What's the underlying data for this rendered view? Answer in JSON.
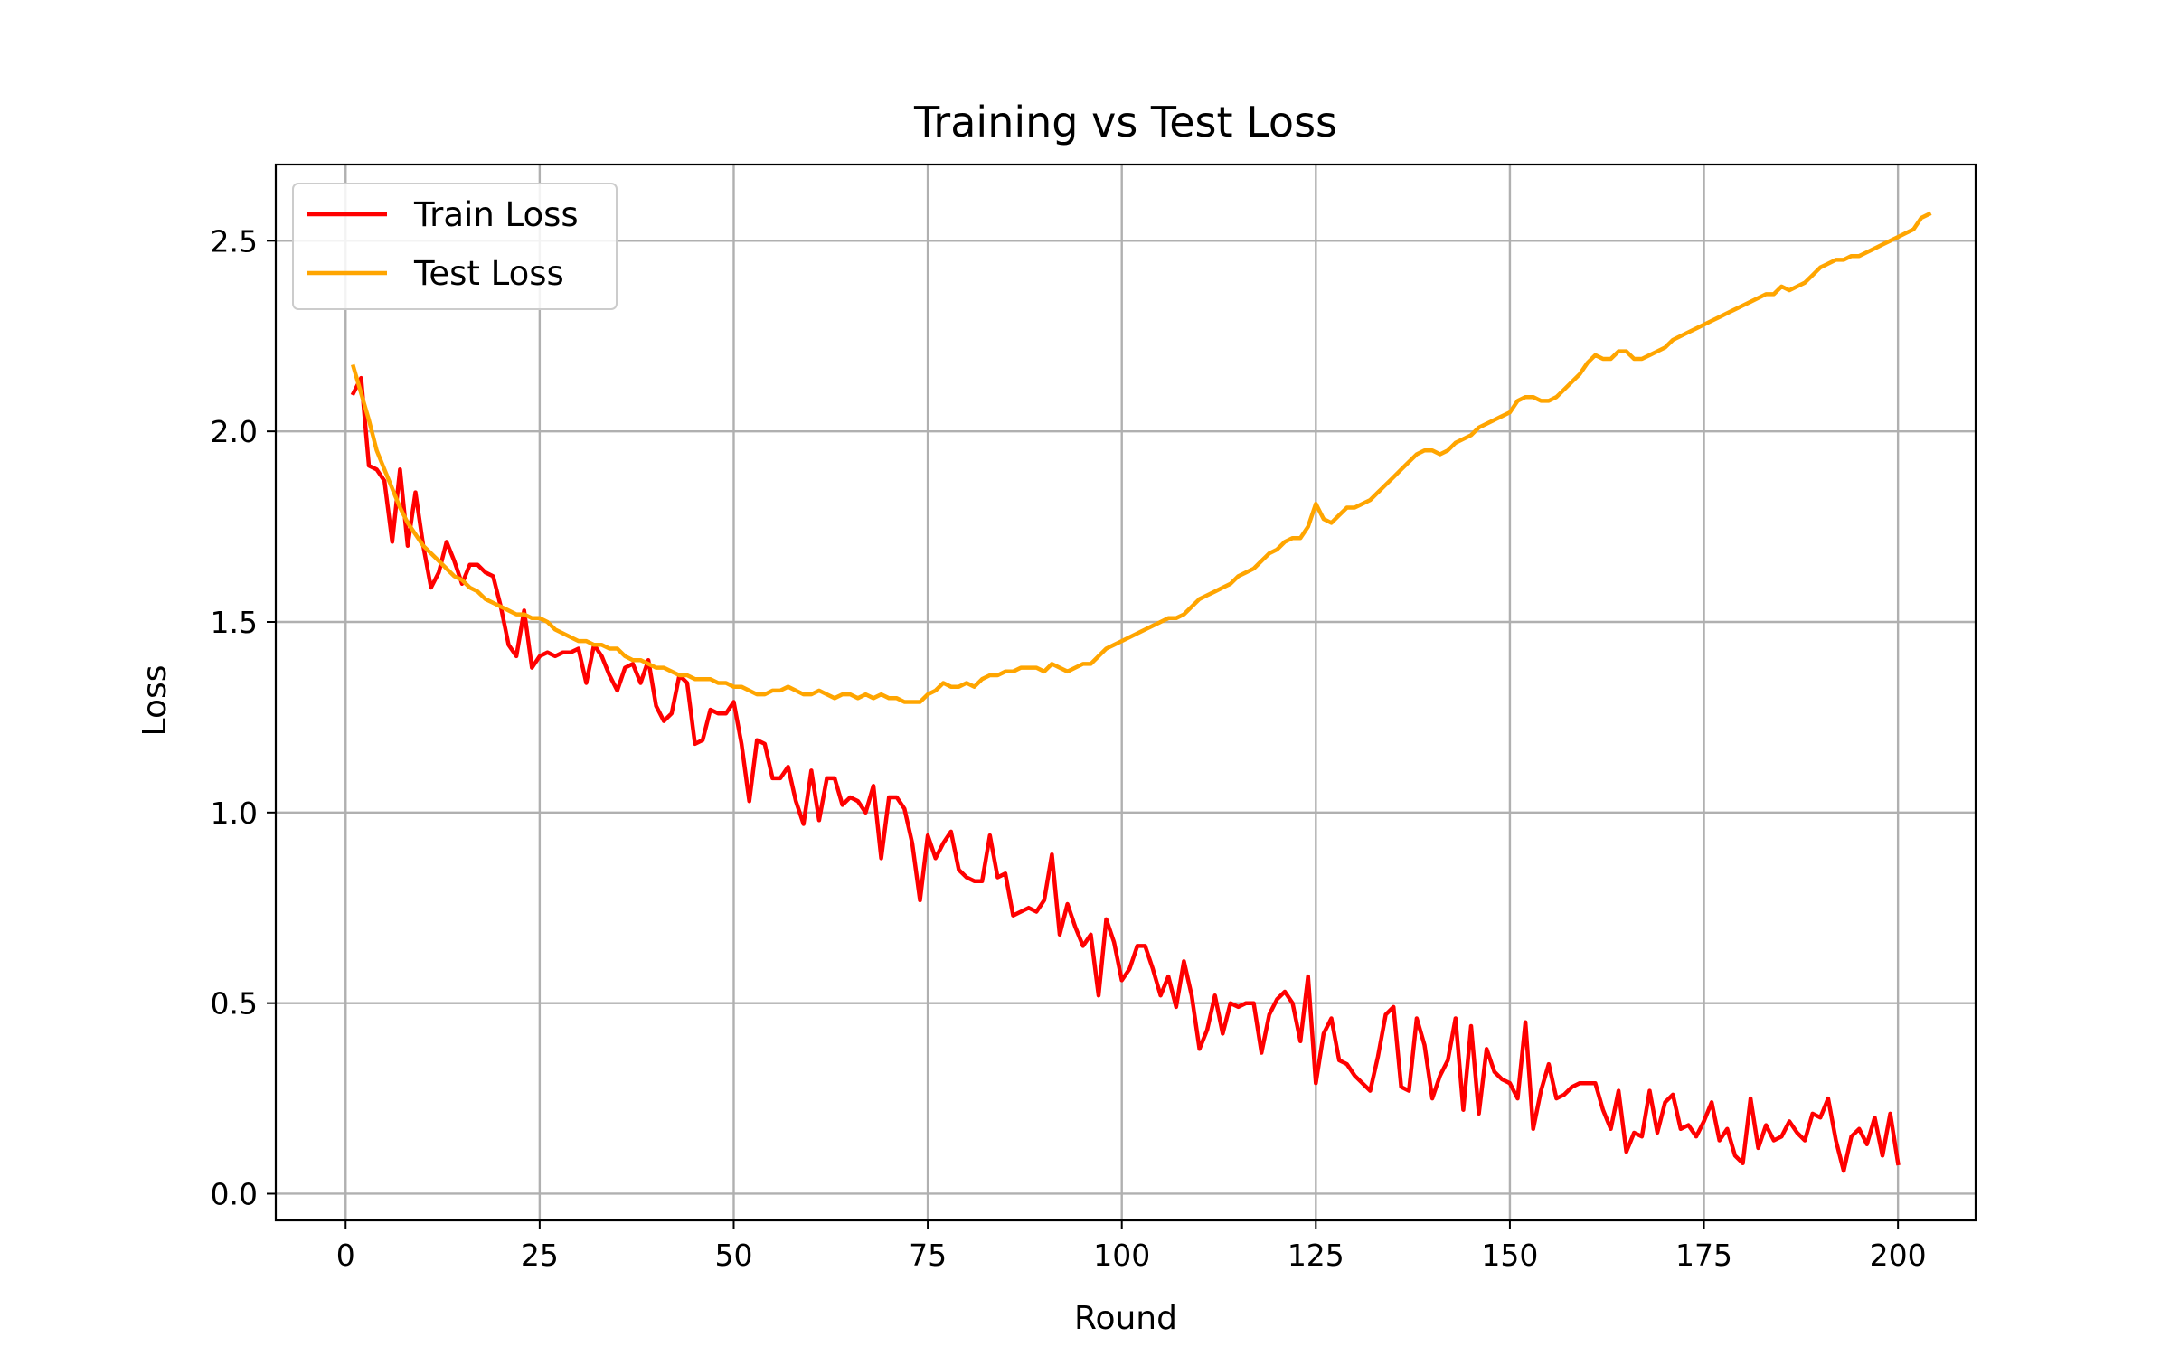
{
  "chart_data": {
    "type": "line",
    "title": "Training vs Test Loss",
    "xlabel": "Round",
    "ylabel": "Loss",
    "xlim": [
      -9,
      210
    ],
    "ylim": [
      -0.07,
      2.7
    ],
    "xticks": [
      0,
      25,
      50,
      75,
      100,
      125,
      150,
      175,
      200
    ],
    "yticks": [
      0.0,
      0.5,
      1.0,
      1.5,
      2.0,
      2.5
    ],
    "xtick_labels": [
      "0",
      "25",
      "50",
      "75",
      "100",
      "125",
      "150",
      "175",
      "200"
    ],
    "ytick_labels": [
      "0.0",
      "0.5",
      "1.0",
      "1.5",
      "2.0",
      "2.5"
    ],
    "grid": true,
    "legend_position": "top-left",
    "series": [
      {
        "name": "Train Loss",
        "color": "#ff0000",
        "x_start": 1,
        "x_step": 1,
        "values": [
          2.1,
          2.14,
          1.91,
          1.9,
          1.87,
          1.71,
          1.9,
          1.7,
          1.84,
          1.7,
          1.59,
          1.63,
          1.71,
          1.66,
          1.6,
          1.65,
          1.65,
          1.63,
          1.62,
          1.54,
          1.44,
          1.41,
          1.53,
          1.38,
          1.41,
          1.42,
          1.41,
          1.42,
          1.42,
          1.43,
          1.34,
          1.44,
          1.41,
          1.36,
          1.32,
          1.38,
          1.39,
          1.34,
          1.4,
          1.28,
          1.24,
          1.26,
          1.36,
          1.34,
          1.18,
          1.19,
          1.27,
          1.26,
          1.26,
          1.29,
          1.18,
          1.03,
          1.19,
          1.18,
          1.09,
          1.09,
          1.12,
          1.03,
          0.97,
          1.11,
          0.98,
          1.09,
          1.09,
          1.02,
          1.04,
          1.03,
          1.0,
          1.07,
          0.88,
          1.04,
          1.04,
          1.01,
          0.92,
          0.77,
          0.94,
          0.88,
          0.92,
          0.95,
          0.85,
          0.83,
          0.82,
          0.82,
          0.94,
          0.83,
          0.84,
          0.73,
          0.74,
          0.75,
          0.74,
          0.77,
          0.89,
          0.68,
          0.76,
          0.7,
          0.65,
          0.68,
          0.52,
          0.72,
          0.66,
          0.56,
          0.59,
          0.65,
          0.65,
          0.59,
          0.52,
          0.57,
          0.49,
          0.61,
          0.52,
          0.38,
          0.43,
          0.52,
          0.42,
          0.5,
          0.49,
          0.5,
          0.5,
          0.37,
          0.47,
          0.51,
          0.53,
          0.5,
          0.4,
          0.57,
          0.29,
          0.42,
          0.46,
          0.35,
          0.34,
          0.31,
          0.29,
          0.27,
          0.36,
          0.47,
          0.49,
          0.28,
          0.27,
          0.46,
          0.39,
          0.25,
          0.31,
          0.35,
          0.46,
          0.22,
          0.44,
          0.21,
          0.38,
          0.32,
          0.3,
          0.29,
          0.25,
          0.45,
          0.17,
          0.27,
          0.34,
          0.25,
          0.26,
          0.28,
          0.29,
          0.29,
          0.29,
          0.22,
          0.17,
          0.27,
          0.11,
          0.16,
          0.15,
          0.27,
          0.16,
          0.24,
          0.26,
          0.17,
          0.18,
          0.15,
          0.19,
          0.24,
          0.14,
          0.17,
          0.1,
          0.08,
          0.25,
          0.12,
          0.18,
          0.14,
          0.15,
          0.19,
          0.16,
          0.14,
          0.21,
          0.2,
          0.25,
          0.14,
          0.06,
          0.15,
          0.17,
          0.13,
          0.2,
          0.1,
          0.21,
          0.08
        ]
      },
      {
        "name": "Test Loss",
        "color": "#ffa500",
        "x_start": 1,
        "x_step": 1,
        "values": [
          2.17,
          2.1,
          2.03,
          1.95,
          1.9,
          1.85,
          1.8,
          1.76,
          1.73,
          1.7,
          1.68,
          1.66,
          1.64,
          1.62,
          1.61,
          1.59,
          1.58,
          1.56,
          1.55,
          1.54,
          1.53,
          1.52,
          1.52,
          1.51,
          1.51,
          1.5,
          1.48,
          1.47,
          1.46,
          1.45,
          1.45,
          1.44,
          1.44,
          1.43,
          1.43,
          1.41,
          1.4,
          1.4,
          1.39,
          1.38,
          1.38,
          1.37,
          1.36,
          1.36,
          1.35,
          1.35,
          1.35,
          1.34,
          1.34,
          1.33,
          1.33,
          1.32,
          1.31,
          1.31,
          1.32,
          1.32,
          1.33,
          1.32,
          1.31,
          1.31,
          1.32,
          1.31,
          1.3,
          1.31,
          1.31,
          1.3,
          1.31,
          1.3,
          1.31,
          1.3,
          1.3,
          1.29,
          1.29,
          1.29,
          1.31,
          1.32,
          1.34,
          1.33,
          1.33,
          1.34,
          1.33,
          1.35,
          1.36,
          1.36,
          1.37,
          1.37,
          1.38,
          1.38,
          1.38,
          1.37,
          1.39,
          1.38,
          1.37,
          1.38,
          1.39,
          1.39,
          1.41,
          1.43,
          1.44,
          1.45,
          1.46,
          1.47,
          1.48,
          1.49,
          1.5,
          1.51,
          1.51,
          1.52,
          1.54,
          1.56,
          1.57,
          1.58,
          1.59,
          1.6,
          1.62,
          1.63,
          1.64,
          1.66,
          1.68,
          1.69,
          1.71,
          1.72,
          1.72,
          1.75,
          1.81,
          1.77,
          1.76,
          1.78,
          1.8,
          1.8,
          1.81,
          1.82,
          1.84,
          1.86,
          1.88,
          1.9,
          1.92,
          1.94,
          1.95,
          1.95,
          1.94,
          1.95,
          1.97,
          1.98,
          1.99,
          2.01,
          2.02,
          2.03,
          2.04,
          2.05,
          2.08,
          2.09,
          2.09,
          2.08,
          2.08,
          2.09,
          2.11,
          2.13,
          2.15,
          2.18,
          2.2,
          2.19,
          2.19,
          2.21,
          2.21,
          2.19,
          2.19,
          2.2,
          2.21,
          2.22,
          2.24,
          2.25,
          2.26,
          2.27,
          2.28,
          2.29,
          2.3,
          2.31,
          2.32,
          2.33,
          2.34,
          2.35,
          2.36,
          2.36,
          2.38,
          2.37,
          2.38,
          2.39,
          2.41,
          2.43,
          2.44,
          2.45,
          2.45,
          2.46,
          2.46,
          2.47,
          2.48,
          2.49,
          2.5,
          2.51,
          2.52,
          2.53,
          2.56,
          2.57
        ]
      }
    ]
  }
}
